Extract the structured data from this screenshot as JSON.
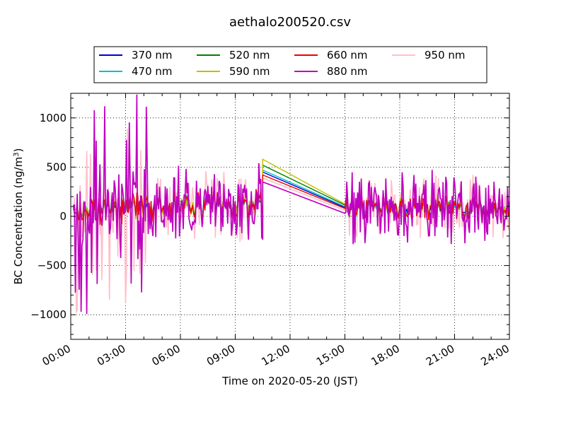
{
  "chart_data": {
    "type": "line",
    "title": "aethalo200520.csv",
    "xlabel": "Time on 2020-05-20 (JST)",
    "ylabel_main": "BC Concentration (ng/m",
    "ylabel_sup": "3",
    "ylabel_close": ")",
    "xlim": [
      "00:00",
      "24:00"
    ],
    "ylim": [
      -1250,
      1250
    ],
    "x_ticks": [
      "00:00",
      "03:00",
      "06:00",
      "09:00",
      "12:00",
      "15:00",
      "18:00",
      "21:00",
      "24:00"
    ],
    "y_ticks": [
      -1000,
      -500,
      0,
      500,
      1000
    ],
    "y_tick_labels": [
      "−1000",
      "−500",
      "0",
      "500",
      "1000"
    ],
    "grid": true,
    "legend_position": "top-center",
    "gap": [
      "10:30",
      "15:00"
    ],
    "series": [
      {
        "name": "370 nm",
        "color": "#0000cc",
        "gap_values": [
          450,
          90
        ]
      },
      {
        "name": "470 nm",
        "color": "#00bfcf",
        "gap_values": [
          470,
          100
        ]
      },
      {
        "name": "520 nm",
        "color": "#008000",
        "gap_values": [
          520,
          115
        ]
      },
      {
        "name": "590 nm",
        "color": "#bfbf00",
        "gap_values": [
          580,
          125
        ]
      },
      {
        "name": "660 nm",
        "color": "#ee0000",
        "gap_values": [
          420,
          80
        ]
      },
      {
        "name": "880 nm",
        "color": "#bf00bf",
        "gap_values": [
          350,
          30
        ]
      },
      {
        "name": "950 nm",
        "color": "#ffc0cb",
        "gap_values": [
          390,
          60
        ]
      }
    ]
  }
}
